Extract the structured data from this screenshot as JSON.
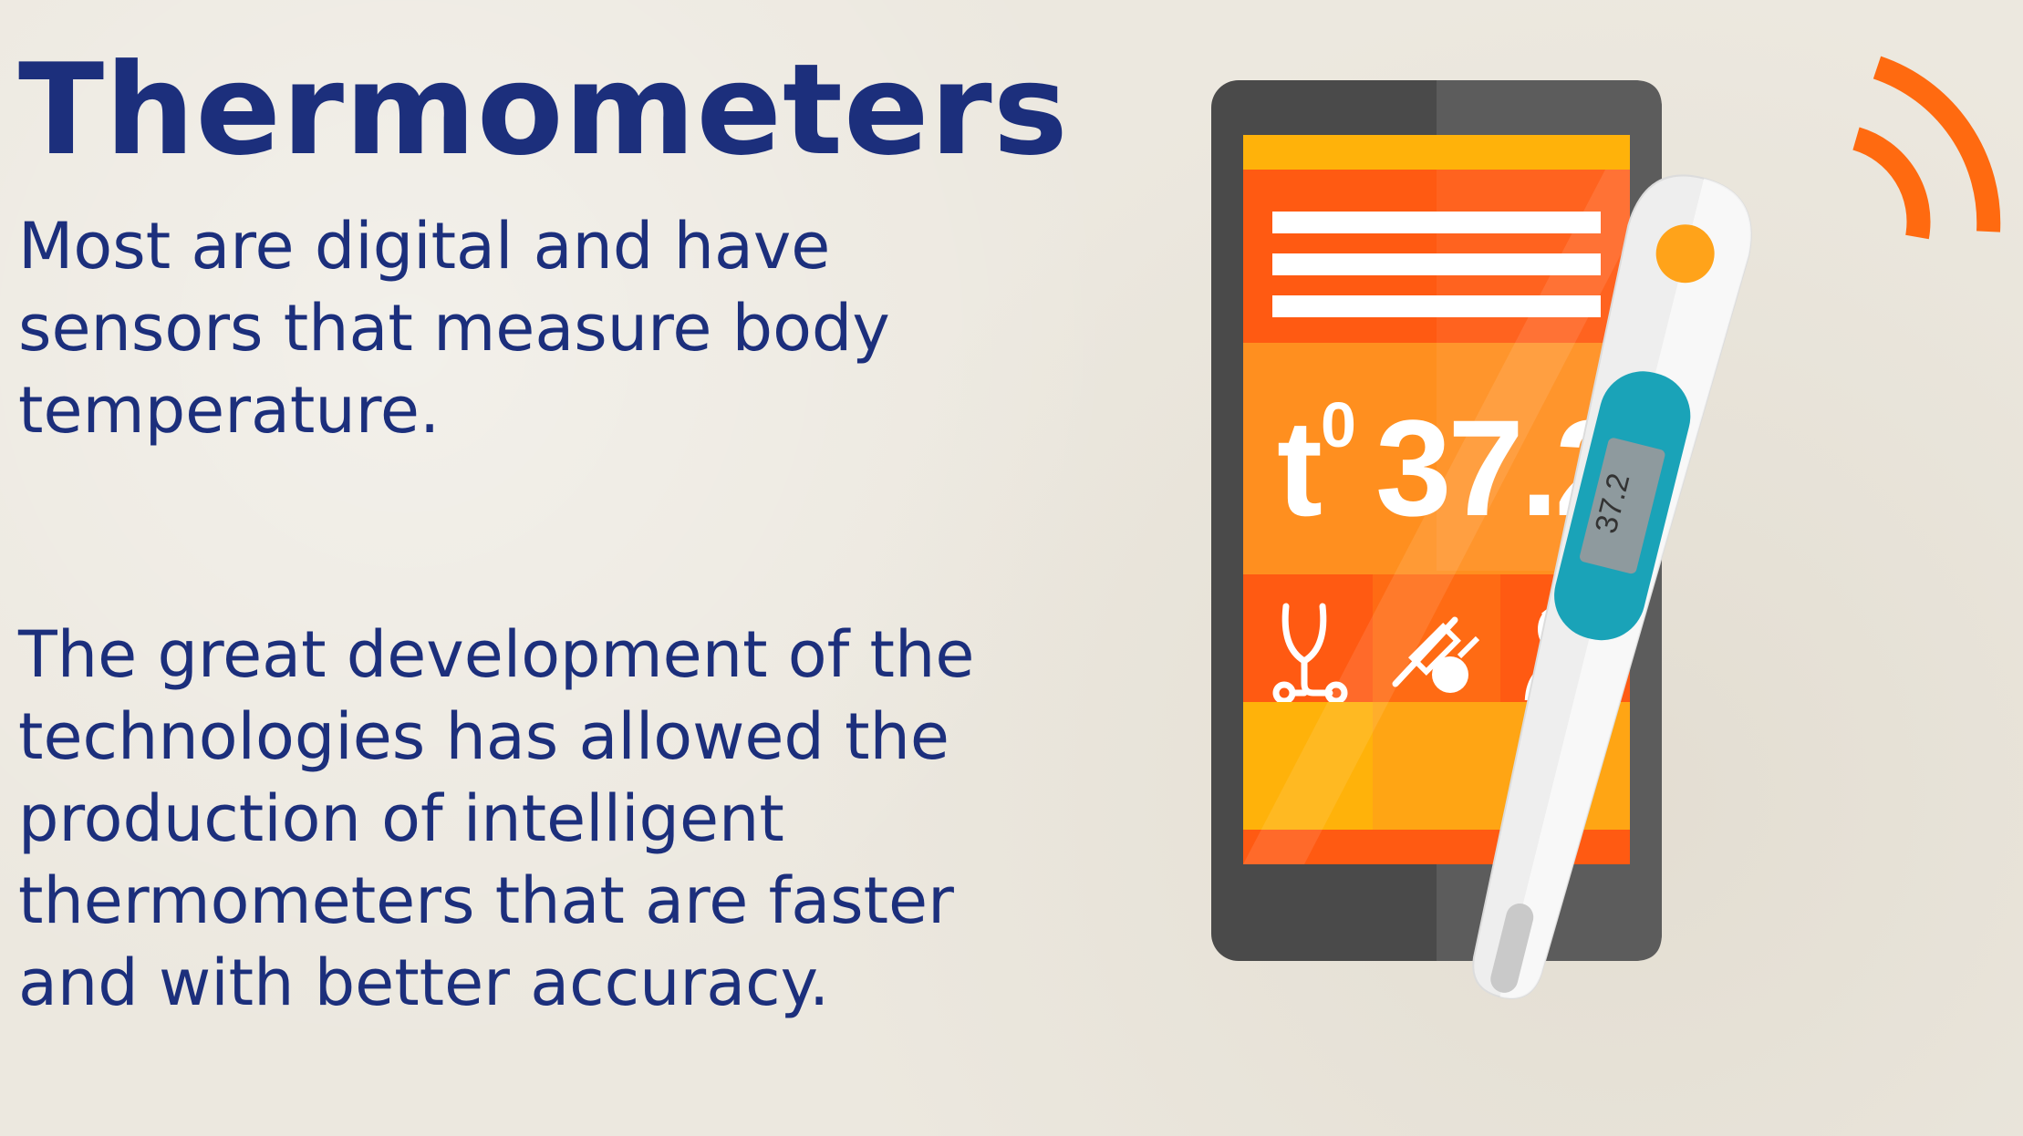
{
  "slide": {
    "title": "Thermometers",
    "paragraph1_lines": [
      "Most are digital and have",
      "sensors that measure body",
      "temperature."
    ],
    "paragraph2_lines": [
      "The great development of the",
      "technologies has allowed the",
      "production of intelligent",
      "thermometers that are faster",
      "and with better accuracy."
    ]
  },
  "phone_screen": {
    "temp_prefix": "t",
    "temp_superscript": "0",
    "temp_value": "37.2",
    "icons": [
      "stethoscope-icon",
      "syringe-icon",
      "doctor-icon"
    ]
  },
  "thermometer": {
    "display_value": "37.2"
  },
  "colors": {
    "title_text": "#1c2f7c",
    "background": "#ece8df",
    "phone_body": "#4a4a4a",
    "screen_orange": "#ff8f1f",
    "screen_dark_orange": "#ff5a12",
    "screen_yellow": "#ffb20a",
    "thermometer_display": "#1aa3b8",
    "signal_orange": "#ff6a10"
  }
}
